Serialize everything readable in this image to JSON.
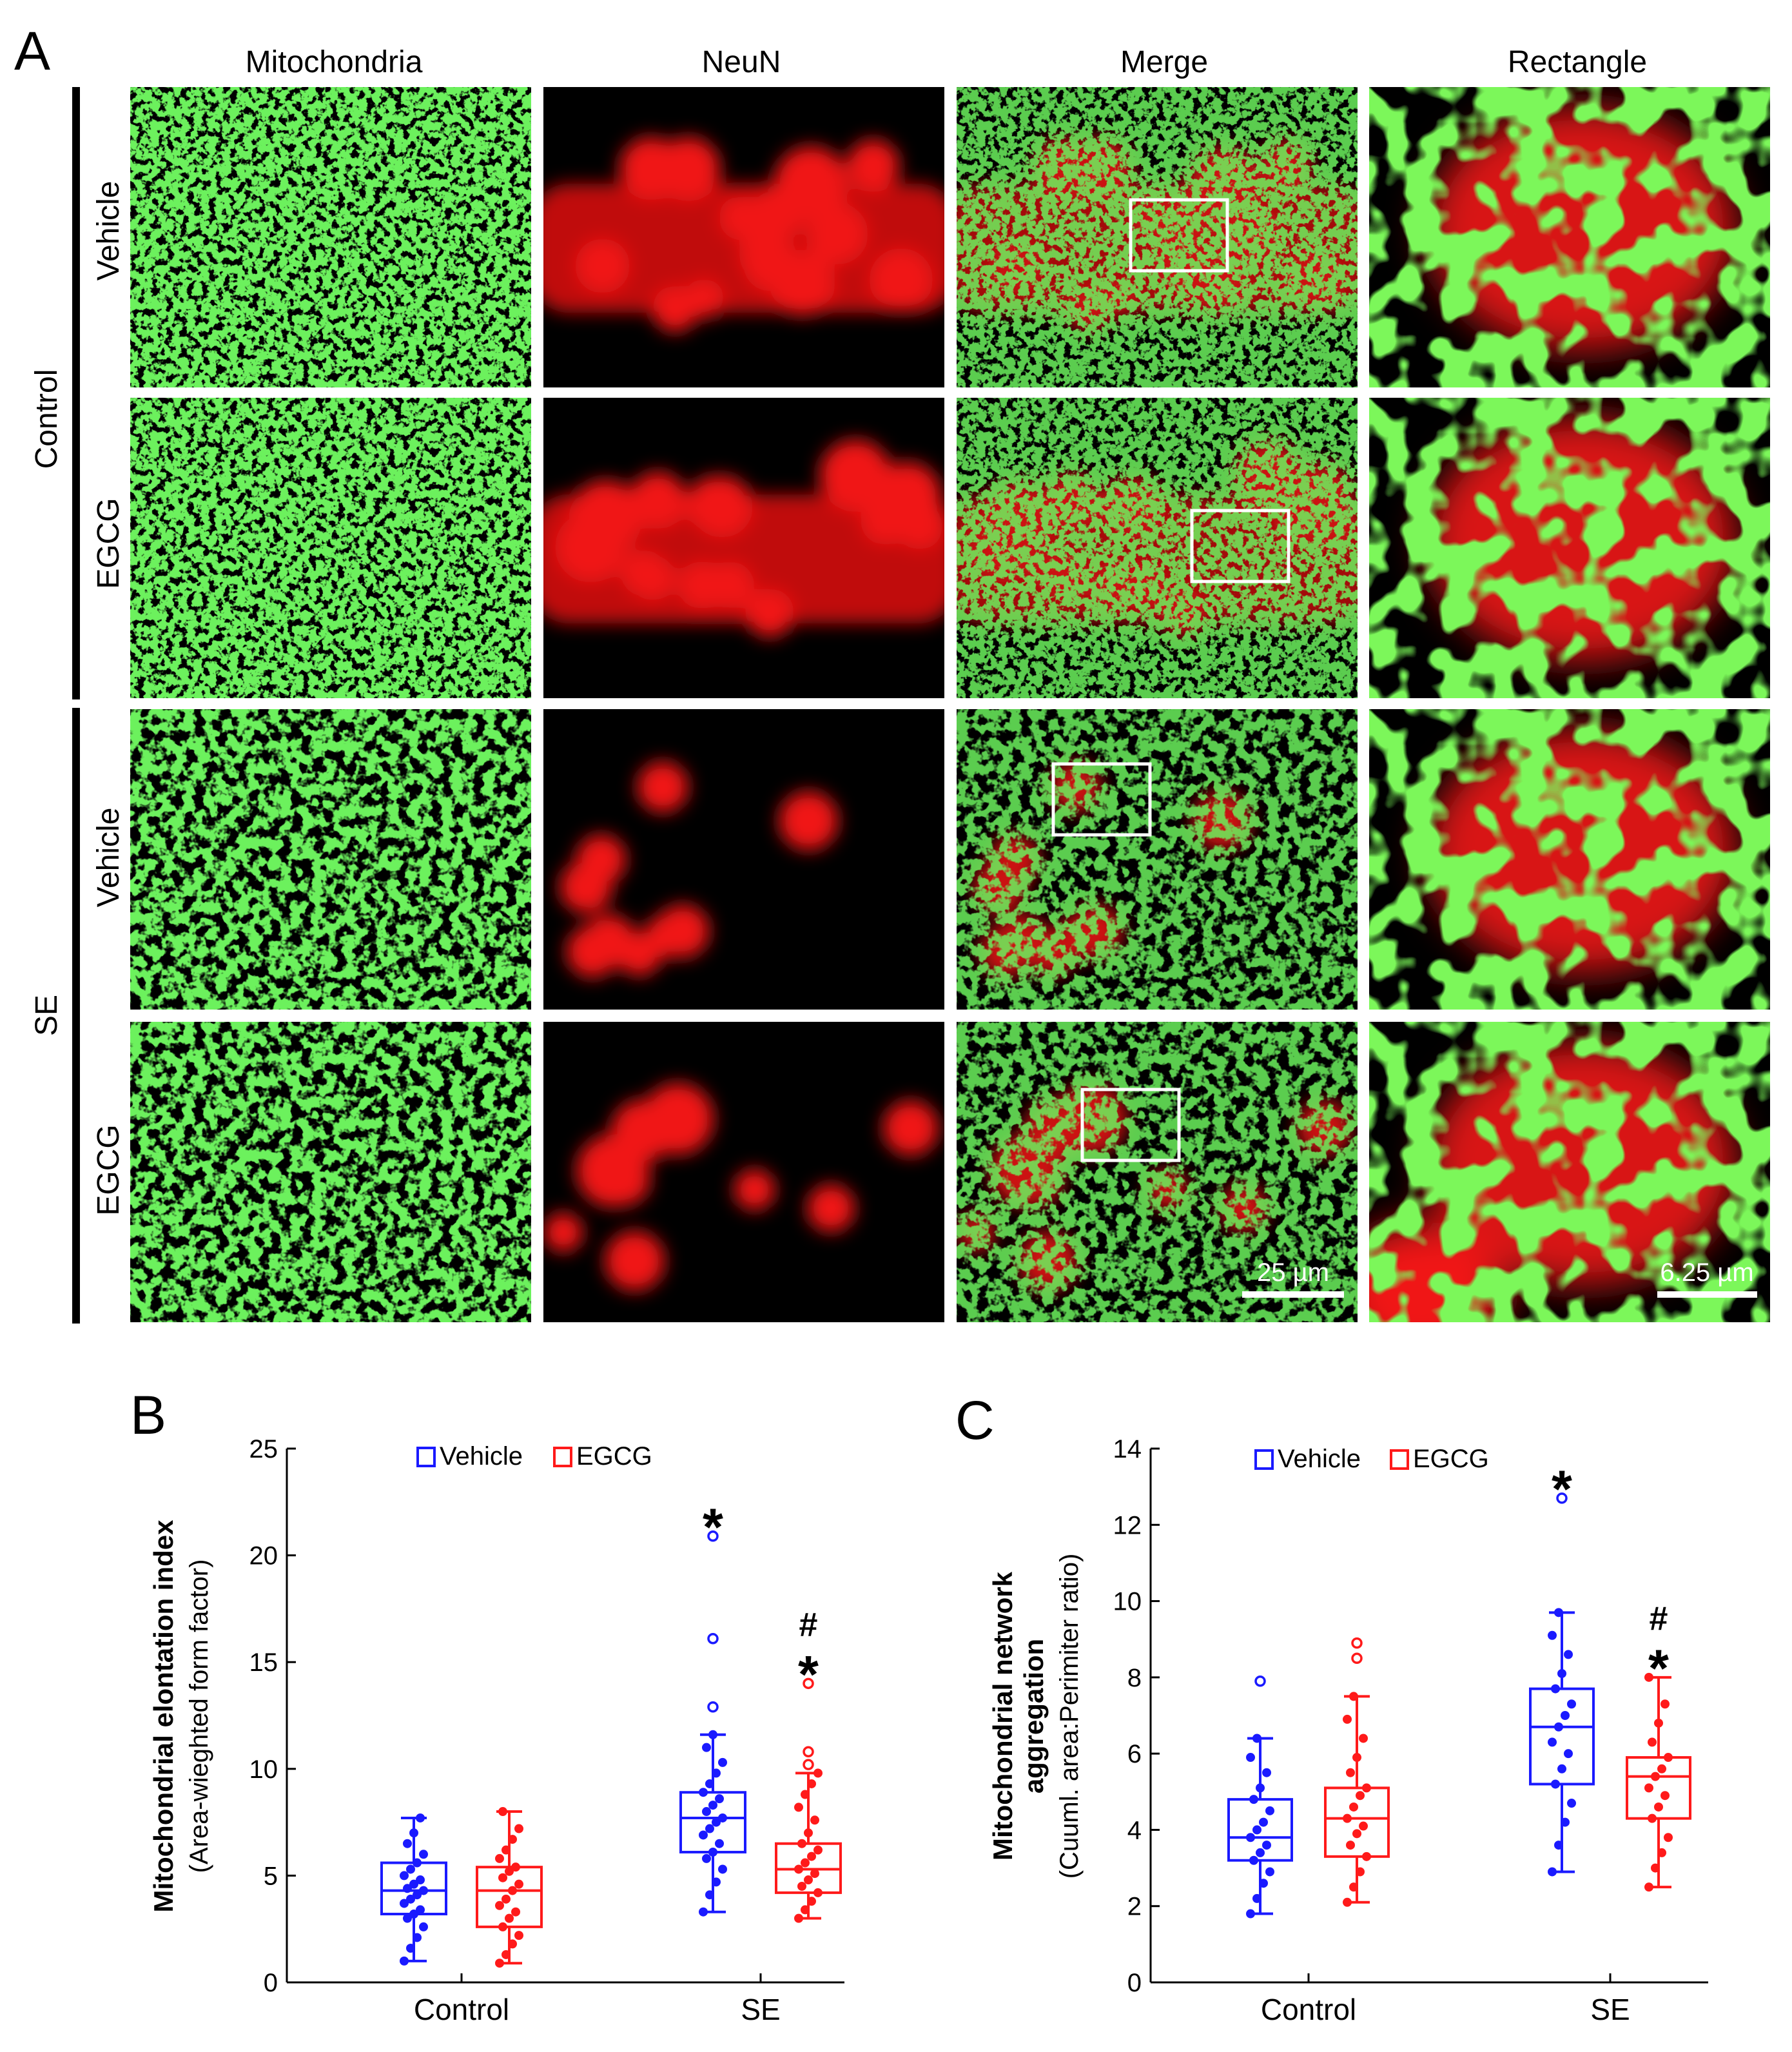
{
  "panel_a": {
    "label": "A",
    "columns": [
      "Mitochondria",
      "NeuN",
      "Merge",
      "Rectangle"
    ],
    "groups": [
      {
        "name": "Control",
        "rows": [
          "Vehicle",
          "EGCG"
        ]
      },
      {
        "name": "SE",
        "rows": [
          "Vehicle",
          "EGCG"
        ]
      }
    ],
    "scale_bars": {
      "merge": "25 µm",
      "rectangle": "6.25 µm"
    },
    "colors": {
      "mitochondria": "#27e01c",
      "neun": "#f01414",
      "overlap": "#e8f020",
      "background": "#000000",
      "roi_box": "#ffffff"
    }
  },
  "chart_data": [
    {
      "panel": "B",
      "type": "box",
      "title": "",
      "ylabel_bold": "Mitochondrial elontation index",
      "ylabel_sub": "(Area-wieghted form factor)",
      "xlabel": "",
      "ylim": [
        0,
        25
      ],
      "yticks": [
        "0",
        "5",
        "10",
        "15",
        "20",
        "25"
      ],
      "ytick_values": [
        0,
        5,
        10,
        15,
        20,
        25
      ],
      "categories": [
        "Control",
        "SE"
      ],
      "legend": {
        "position": "top-center",
        "entries": [
          "Vehicle",
          "EGCG"
        ]
      },
      "series": [
        {
          "name": "Vehicle",
          "color": "#1a1aff",
          "boxes": [
            {
              "category": "Control",
              "q1": 3.2,
              "median": 4.3,
              "q3": 5.6,
              "whisker_low": 1.0,
              "whisker_high": 7.7,
              "points": [
                1.0,
                1.6,
                2.1,
                2.6,
                3.0,
                3.2,
                3.4,
                3.7,
                3.9,
                4.1,
                4.3,
                4.4,
                4.6,
                4.8,
                5.0,
                5.3,
                5.6,
                6.0,
                6.5,
                7.0,
                7.7
              ],
              "outliers": []
            },
            {
              "category": "SE",
              "q1": 6.1,
              "median": 7.7,
              "q3": 8.9,
              "whisker_low": 3.3,
              "whisker_high": 11.6,
              "points": [
                3.3,
                4.1,
                4.7,
                5.3,
                5.8,
                6.1,
                6.5,
                6.9,
                7.2,
                7.5,
                7.7,
                8.0,
                8.3,
                8.6,
                8.9,
                9.3,
                9.8,
                10.3,
                11.0,
                11.6
              ],
              "outliers": [
                12.9,
                16.1,
                20.9
              ]
            }
          ]
        },
        {
          "name": "EGCG",
          "color": "#ff1a1a",
          "boxes": [
            {
              "category": "Control",
              "q1": 2.6,
              "median": 4.3,
              "q3": 5.4,
              "whisker_low": 0.9,
              "whisker_high": 8.0,
              "points": [
                0.9,
                1.3,
                1.8,
                2.2,
                2.6,
                3.0,
                3.3,
                3.6,
                3.9,
                4.3,
                4.6,
                4.9,
                5.2,
                5.4,
                5.8,
                6.2,
                6.7,
                7.2,
                8.0
              ],
              "outliers": []
            },
            {
              "category": "SE",
              "q1": 4.2,
              "median": 5.3,
              "q3": 6.5,
              "whisker_low": 3.0,
              "whisker_high": 9.8,
              "points": [
                3.0,
                3.4,
                3.8,
                4.2,
                4.5,
                4.8,
                5.1,
                5.3,
                5.6,
                5.9,
                6.2,
                6.5,
                7.0,
                7.6,
                8.2,
                8.8,
                9.3,
                9.8
              ],
              "outliers": [
                10.2,
                10.8,
                14.0
              ]
            }
          ]
        }
      ],
      "annotations": [
        {
          "category": "SE",
          "series": "Vehicle",
          "symbols": [
            "*"
          ]
        },
        {
          "category": "SE",
          "series": "EGCG",
          "symbols": [
            "#",
            "*"
          ]
        }
      ]
    },
    {
      "panel": "C",
      "type": "box",
      "title": "",
      "ylabel_bold_line1": "Mitochondrial network",
      "ylabel_bold_line2": "aggregation",
      "ylabel_sub": "(Cuuml. area:Perimiter ratio)",
      "xlabel": "",
      "ylim": [
        0,
        14
      ],
      "yticks": [
        "0",
        "2",
        "4",
        "6",
        "8",
        "10",
        "12",
        "14"
      ],
      "ytick_values": [
        0,
        2,
        4,
        6,
        8,
        10,
        12,
        14
      ],
      "categories": [
        "Control",
        "SE"
      ],
      "legend": {
        "position": "top-center",
        "entries": [
          "Vehicle",
          "EGCG"
        ]
      },
      "series": [
        {
          "name": "Vehicle",
          "color": "#1a1aff",
          "boxes": [
            {
              "category": "Control",
              "q1": 3.2,
              "median": 3.8,
              "q3": 4.8,
              "whisker_low": 1.8,
              "whisker_high": 6.4,
              "points": [
                1.8,
                2.2,
                2.6,
                2.9,
                3.2,
                3.4,
                3.6,
                3.8,
                4.0,
                4.2,
                4.5,
                4.8,
                5.1,
                5.5,
                5.9,
                6.4
              ],
              "outliers": [
                7.9
              ]
            },
            {
              "category": "SE",
              "q1": 5.2,
              "median": 6.7,
              "q3": 7.7,
              "whisker_low": 2.9,
              "whisker_high": 9.7,
              "points": [
                2.9,
                3.6,
                4.2,
                4.7,
                5.2,
                5.6,
                6.0,
                6.3,
                6.7,
                7.0,
                7.3,
                7.7,
                8.1,
                8.6,
                9.1,
                9.7
              ],
              "outliers": [
                12.7
              ]
            }
          ]
        },
        {
          "name": "EGCG",
          "color": "#ff1a1a",
          "boxes": [
            {
              "category": "Control",
              "q1": 3.3,
              "median": 4.3,
              "q3": 5.1,
              "whisker_low": 2.1,
              "whisker_high": 7.5,
              "points": [
                2.1,
                2.5,
                2.9,
                3.3,
                3.6,
                3.9,
                4.1,
                4.3,
                4.6,
                4.9,
                5.1,
                5.5,
                5.9,
                6.4,
                6.9,
                7.5
              ],
              "outliers": [
                8.5,
                8.9
              ]
            },
            {
              "category": "SE",
              "q1": 4.3,
              "median": 5.4,
              "q3": 5.9,
              "whisker_low": 2.5,
              "whisker_high": 8.0,
              "points": [
                2.5,
                3.0,
                3.4,
                3.8,
                4.3,
                4.6,
                4.9,
                5.1,
                5.4,
                5.6,
                5.9,
                6.3,
                6.8,
                7.3,
                8.0
              ],
              "outliers": []
            }
          ]
        }
      ],
      "annotations": [
        {
          "category": "SE",
          "series": "Vehicle",
          "symbols": [
            "*"
          ]
        },
        {
          "category": "SE",
          "series": "EGCG",
          "symbols": [
            "#",
            "*"
          ]
        }
      ]
    }
  ]
}
